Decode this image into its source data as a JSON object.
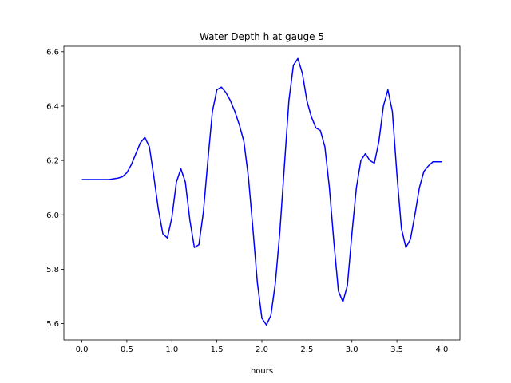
{
  "chart_data": {
    "type": "line",
    "title": "Water Depth h at gauge 5",
    "xlabel": "hours",
    "ylabel": "",
    "xlim": [
      -0.2,
      4.2
    ],
    "ylim": [
      5.54,
      6.62
    ],
    "xticks": [
      0.0,
      0.5,
      1.0,
      1.5,
      2.0,
      2.5,
      3.0,
      3.5,
      4.0
    ],
    "xtick_labels": [
      "0.0",
      "0.5",
      "1.0",
      "1.5",
      "2.0",
      "2.5",
      "3.0",
      "3.5",
      "4.0"
    ],
    "yticks": [
      5.6,
      5.8,
      6.0,
      6.2,
      6.4,
      6.6
    ],
    "ytick_labels": [
      "5.6",
      "5.8",
      "6.0",
      "6.2",
      "6.4",
      "6.6"
    ],
    "grid": false,
    "series": [
      {
        "name": "",
        "color": "#0000ff",
        "x": [
          0.0,
          0.1,
          0.2,
          0.3,
          0.4,
          0.45,
          0.5,
          0.55,
          0.6,
          0.65,
          0.7,
          0.75,
          0.8,
          0.85,
          0.9,
          0.95,
          1.0,
          1.05,
          1.1,
          1.15,
          1.2,
          1.25,
          1.3,
          1.35,
          1.4,
          1.45,
          1.5,
          1.55,
          1.6,
          1.65,
          1.7,
          1.75,
          1.8,
          1.85,
          1.9,
          1.95,
          2.0,
          2.05,
          2.1,
          2.15,
          2.2,
          2.25,
          2.3,
          2.35,
          2.4,
          2.45,
          2.5,
          2.55,
          2.6,
          2.65,
          2.7,
          2.75,
          2.8,
          2.85,
          2.9,
          2.95,
          3.0,
          3.05,
          3.1,
          3.15,
          3.2,
          3.25,
          3.3,
          3.35,
          3.4,
          3.45,
          3.5,
          3.55,
          3.6,
          3.65,
          3.7,
          3.75,
          3.8,
          3.85,
          3.9,
          3.95,
          4.0
        ],
        "y": [
          6.13,
          6.13,
          6.13,
          6.13,
          6.135,
          6.14,
          6.155,
          6.185,
          6.225,
          6.265,
          6.285,
          6.25,
          6.14,
          6.02,
          5.93,
          5.915,
          5.99,
          6.12,
          6.17,
          6.12,
          5.98,
          5.88,
          5.89,
          6.01,
          6.2,
          6.38,
          6.46,
          6.47,
          6.45,
          6.42,
          6.38,
          6.33,
          6.27,
          6.14,
          5.95,
          5.75,
          5.62,
          5.595,
          5.63,
          5.75,
          5.94,
          6.18,
          6.42,
          6.55,
          6.575,
          6.52,
          6.42,
          6.36,
          6.32,
          6.31,
          6.25,
          6.1,
          5.9,
          5.72,
          5.68,
          5.74,
          5.93,
          6.1,
          6.2,
          6.225,
          6.2,
          6.19,
          6.27,
          6.4,
          6.46,
          6.38,
          6.15,
          5.95,
          5.88,
          5.91,
          6.0,
          6.1,
          6.16,
          6.18,
          6.195,
          6.195,
          6.195
        ]
      }
    ]
  }
}
